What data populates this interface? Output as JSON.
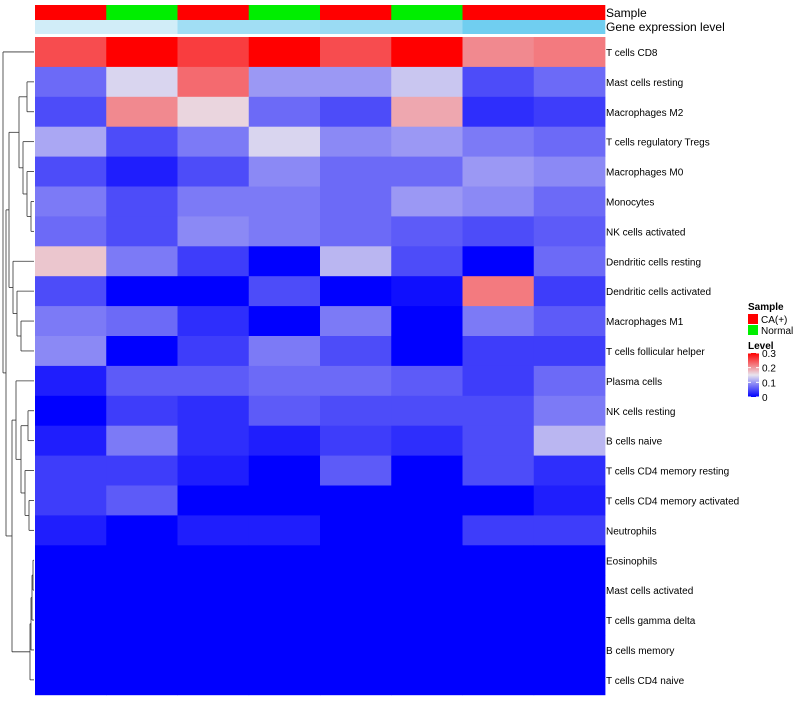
{
  "chart_data": {
    "type": "heatmap",
    "annotation_tracks": [
      "Sample",
      "Gene expression level"
    ],
    "sample_groups": [
      "CA(+)",
      "Normal",
      "CA(+)",
      "Normal",
      "CA(+)",
      "Normal",
      "CA(+)",
      "CA(+)"
    ],
    "expression_level": [
      0.15,
      0.15,
      0.5,
      0.5,
      0.55,
      0.55,
      0.85,
      0.85
    ],
    "rows": [
      "T cells CD8",
      "Mast cells resting",
      "Macrophages M2",
      "T cells regulatory  Tregs",
      "Macrophages M0",
      "Monocytes",
      "NK cells activated",
      "Dendritic cells resting",
      "Dendritic cells activated",
      "Macrophages M1",
      "T cells follicular helper",
      "Plasma cells",
      "NK cells resting",
      "B cells naive",
      "T cells CD4 memory resting",
      "T cells CD4 memory activated",
      "Neutrophils",
      "Eosinophils",
      "Mast cells activated",
      "T cells gamma delta",
      "B cells memory",
      "T cells CD4 naive"
    ],
    "values": [
      [
        0.25,
        0.3,
        0.26,
        0.3,
        0.25,
        0.3,
        0.21,
        0.22
      ],
      [
        0.07,
        0.14,
        0.23,
        0.1,
        0.1,
        0.13,
        0.05,
        0.07
      ],
      [
        0.05,
        0.21,
        0.16,
        0.07,
        0.05,
        0.19,
        0.03,
        0.04
      ],
      [
        0.11,
        0.05,
        0.08,
        0.14,
        0.09,
        0.1,
        0.08,
        0.07
      ],
      [
        0.05,
        0.02,
        0.05,
        0.09,
        0.07,
        0.07,
        0.1,
        0.09
      ],
      [
        0.08,
        0.05,
        0.08,
        0.08,
        0.07,
        0.1,
        0.09,
        0.07
      ],
      [
        0.07,
        0.05,
        0.09,
        0.08,
        0.07,
        0.06,
        0.05,
        0.06
      ],
      [
        0.17,
        0.08,
        0.04,
        0.0,
        0.12,
        0.05,
        0.0,
        0.07
      ],
      [
        0.05,
        0.0,
        0.0,
        0.05,
        0.0,
        0.01,
        0.22,
        0.04
      ],
      [
        0.08,
        0.07,
        0.03,
        0.0,
        0.08,
        0.0,
        0.08,
        0.06
      ],
      [
        0.09,
        0.0,
        0.04,
        0.08,
        0.05,
        0.0,
        0.04,
        0.04
      ],
      [
        0.02,
        0.06,
        0.06,
        0.07,
        0.07,
        0.06,
        0.04,
        0.07
      ],
      [
        0.0,
        0.04,
        0.03,
        0.06,
        0.05,
        0.05,
        0.05,
        0.08
      ],
      [
        0.02,
        0.08,
        0.03,
        0.02,
        0.04,
        0.03,
        0.05,
        0.12
      ],
      [
        0.04,
        0.04,
        0.02,
        0.0,
        0.06,
        0.0,
        0.05,
        0.03
      ],
      [
        0.04,
        0.06,
        0.0,
        0.0,
        0.0,
        0.0,
        0.0,
        0.02
      ],
      [
        0.02,
        0.0,
        0.02,
        0.02,
        0.0,
        0.0,
        0.04,
        0.04
      ],
      [
        0.0,
        0.0,
        0.0,
        0.0,
        0.0,
        0.0,
        0.0,
        0.0
      ],
      [
        0.0,
        0.0,
        0.0,
        0.0,
        0.0,
        0.0,
        0.0,
        0.0
      ],
      [
        0.0,
        0.0,
        0.0,
        0.0,
        0.0,
        0.0,
        0.0,
        0.0
      ],
      [
        0.0,
        0.0,
        0.0,
        0.0,
        0.0,
        0.0,
        0.0,
        0.0
      ],
      [
        0.0,
        0.0,
        0.0,
        0.0,
        0.0,
        0.0,
        0.0,
        0.0
      ]
    ],
    "color_scale": {
      "low": "#0000ff",
      "mid": "#e8e4ee",
      "high": "#ff0000",
      "range": [
        0,
        0.3
      ],
      "mid_value": 0.15
    },
    "legend": {
      "sample_title": "Sample",
      "sample_entries": [
        {
          "label": "CA(+)",
          "color": "#ff0000"
        },
        {
          "label": "Normal",
          "color": "#00ee00"
        }
      ],
      "level_title": "Level",
      "level_ticks": [
        "0.3",
        "0.2",
        "0.1",
        "0"
      ],
      "level_tick_values": [
        0.3,
        0.2,
        0.1,
        0
      ],
      "placement": "right"
    },
    "row_dendrogram": true,
    "expression_track_colors": {
      "low": "#e6f3fa",
      "high": "#5bc8ee"
    }
  }
}
